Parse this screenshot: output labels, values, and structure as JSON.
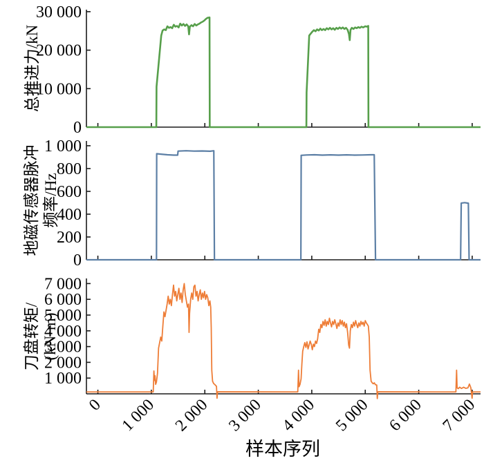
{
  "figure": {
    "background": "#ffffff",
    "axis_color": "#1a1a1a"
  },
  "chart_data": {
    "type": "line",
    "layout_hint": "three vertically stacked subplots sharing one x axis, no grid, no legend, inward ticks",
    "xlabel": "样本序列",
    "xlim": [
      -214,
      7156
    ],
    "x_ticks": [
      {
        "value": 0,
        "label": "0"
      },
      {
        "value": 1000,
        "label": "1 000"
      },
      {
        "value": 2000,
        "label": "2 000"
      },
      {
        "value": 3000,
        "label": "3 000"
      },
      {
        "value": 4000,
        "label": "4 000"
      },
      {
        "value": 5000,
        "label": "5 000"
      },
      {
        "value": 6000,
        "label": "6 000"
      },
      {
        "value": 7000,
        "label": "7 000"
      }
    ],
    "subplots": [
      {
        "id": "thrust",
        "ylabel_lines": [
          "总推进力/kN"
        ],
        "color": "#579F4B",
        "line_width": 2.6,
        "ylim": [
          0,
          30520
        ],
        "y_ticks": [
          {
            "value": 0,
            "label": "0"
          },
          {
            "value": 10000,
            "label": "10 000"
          },
          {
            "value": 20000,
            "label": "20 000"
          },
          {
            "value": 30000,
            "label": "30 000"
          }
        ],
        "points": [
          [
            -214,
            0
          ],
          [
            1093,
            0
          ],
          [
            1097,
            10500
          ],
          [
            1185,
            23800
          ],
          [
            1210,
            25100
          ],
          [
            1240,
            25400
          ],
          [
            1270,
            25200
          ],
          [
            1300,
            26200
          ],
          [
            1330,
            25800
          ],
          [
            1360,
            26000
          ],
          [
            1390,
            25700
          ],
          [
            1420,
            26600
          ],
          [
            1450,
            26100
          ],
          [
            1480,
            26300
          ],
          [
            1510,
            25900
          ],
          [
            1540,
            26900
          ],
          [
            1570,
            26400
          ],
          [
            1600,
            26800
          ],
          [
            1630,
            26300
          ],
          [
            1660,
            26700
          ],
          [
            1690,
            26200
          ],
          [
            1705,
            24100
          ],
          [
            1720,
            26100
          ],
          [
            1750,
            26500
          ],
          [
            1780,
            26200
          ],
          [
            1810,
            26800
          ],
          [
            1840,
            26400
          ],
          [
            1870,
            26700
          ],
          [
            1900,
            26900
          ],
          [
            1930,
            27200
          ],
          [
            1960,
            27400
          ],
          [
            1990,
            27700
          ],
          [
            2020,
            28100
          ],
          [
            2050,
            28400
          ],
          [
            2088,
            28500
          ],
          [
            2092,
            0
          ],
          [
            3899,
            0
          ],
          [
            3903,
            9000
          ],
          [
            3952,
            23800
          ],
          [
            3980,
            24300
          ],
          [
            4010,
            24800
          ],
          [
            4040,
            25200
          ],
          [
            4070,
            24900
          ],
          [
            4100,
            25400
          ],
          [
            4130,
            25100
          ],
          [
            4160,
            25600
          ],
          [
            4190,
            25200
          ],
          [
            4220,
            25500
          ],
          [
            4250,
            25200
          ],
          [
            4280,
            25700
          ],
          [
            4310,
            25400
          ],
          [
            4340,
            25800
          ],
          [
            4370,
            25400
          ],
          [
            4400,
            25700
          ],
          [
            4430,
            25300
          ],
          [
            4460,
            25800
          ],
          [
            4490,
            25500
          ],
          [
            4520,
            25900
          ],
          [
            4550,
            25600
          ],
          [
            4580,
            25900
          ],
          [
            4610,
            25500
          ],
          [
            4640,
            25800
          ],
          [
            4670,
            25300
          ],
          [
            4695,
            24200
          ],
          [
            4710,
            22600
          ],
          [
            4725,
            25300
          ],
          [
            4750,
            25800
          ],
          [
            4780,
            25500
          ],
          [
            4810,
            25900
          ],
          [
            4840,
            25700
          ],
          [
            4870,
            26000
          ],
          [
            4900,
            25800
          ],
          [
            4930,
            26100
          ],
          [
            4960,
            25900
          ],
          [
            5000,
            26200
          ],
          [
            5030,
            26100
          ],
          [
            5056,
            26300
          ],
          [
            5060,
            0
          ],
          [
            7156,
            0
          ]
        ]
      },
      {
        "id": "frequency",
        "ylabel_lines": [
          "地磁传感器脉冲",
          "频率/Hz"
        ],
        "color": "#5C7FA5",
        "line_width": 2.2,
        "ylim": [
          0,
          1042
        ],
        "y_ticks": [
          {
            "value": 0,
            "label": "0"
          },
          {
            "value": 200,
            "label": "200"
          },
          {
            "value": 400,
            "label": "400"
          },
          {
            "value": 600,
            "label": "600"
          },
          {
            "value": 800,
            "label": "800"
          },
          {
            "value": 1000,
            "label": "1 000"
          }
        ],
        "points": [
          [
            -214,
            0
          ],
          [
            1096,
            0
          ],
          [
            1100,
            930
          ],
          [
            1180,
            926
          ],
          [
            1300,
            921
          ],
          [
            1420,
            918
          ],
          [
            1492,
            918
          ],
          [
            1500,
            953
          ],
          [
            1650,
            956
          ],
          [
            1800,
            953
          ],
          [
            1950,
            954
          ],
          [
            2100,
            952
          ],
          [
            2168,
            956
          ],
          [
            2180,
            0
          ],
          [
            3796,
            0
          ],
          [
            3802,
            916
          ],
          [
            3900,
            919
          ],
          [
            4050,
            921
          ],
          [
            4200,
            918
          ],
          [
            4350,
            920
          ],
          [
            4500,
            918
          ],
          [
            4650,
            920
          ],
          [
            4800,
            918
          ],
          [
            4950,
            919
          ],
          [
            5100,
            921
          ],
          [
            5168,
            921
          ],
          [
            5192,
            0
          ],
          [
            6783,
            0
          ],
          [
            6795,
            497
          ],
          [
            6860,
            501
          ],
          [
            6928,
            496
          ],
          [
            6942,
            0
          ],
          [
            7156,
            0
          ]
        ]
      },
      {
        "id": "torque",
        "ylabel_lines": [
          "刀盘转矩/",
          "(kN·m)"
        ],
        "color": "#EE7D37",
        "line_width": 1.8,
        "ylim": [
          0,
          7325
        ],
        "y_ticks": [
          {
            "value": 1000,
            "label": "1 000"
          },
          {
            "value": 2000,
            "label": "2 000"
          },
          {
            "value": 3000,
            "label": "3 000"
          },
          {
            "value": 4000,
            "label": "4 000"
          },
          {
            "value": 5000,
            "label": "5 000"
          },
          {
            "value": 6000,
            "label": "6 000"
          },
          {
            "value": 7000,
            "label": "7 000"
          }
        ],
        "points": [
          [
            -214,
            120
          ],
          [
            1035,
            120
          ],
          [
            1048,
            1450
          ],
          [
            1058,
            850
          ],
          [
            1068,
            1150
          ],
          [
            1080,
            600
          ],
          [
            1095,
            750
          ],
          [
            1115,
            1300
          ],
          [
            1135,
            2900
          ],
          [
            1155,
            3250
          ],
          [
            1175,
            3600
          ],
          [
            1195,
            3350
          ],
          [
            1215,
            4300
          ],
          [
            1235,
            5200
          ],
          [
            1255,
            4900
          ],
          [
            1275,
            5300
          ],
          [
            1295,
            5700
          ],
          [
            1315,
            6200
          ],
          [
            1335,
            5700
          ],
          [
            1355,
            6000
          ],
          [
            1375,
            5600
          ],
          [
            1395,
            6300
          ],
          [
            1415,
            6900
          ],
          [
            1435,
            6200
          ],
          [
            1455,
            6500
          ],
          [
            1475,
            5900
          ],
          [
            1495,
            6300
          ],
          [
            1515,
            6700
          ],
          [
            1535,
            6000
          ],
          [
            1555,
            6400
          ],
          [
            1575,
            5800
          ],
          [
            1595,
            6600
          ],
          [
            1615,
            7000
          ],
          [
            1635,
            6300
          ],
          [
            1655,
            5900
          ],
          [
            1675,
            5500
          ],
          [
            1695,
            5700
          ],
          [
            1705,
            3900
          ],
          [
            1715,
            5100
          ],
          [
            1735,
            6000
          ],
          [
            1755,
            6400
          ],
          [
            1775,
            6000
          ],
          [
            1795,
            6800
          ],
          [
            1815,
            6900
          ],
          [
            1835,
            6200
          ],
          [
            1855,
            6500
          ],
          [
            1875,
            5900
          ],
          [
            1895,
            6300
          ],
          [
            1915,
            6600
          ],
          [
            1935,
            6000
          ],
          [
            1955,
            6400
          ],
          [
            1975,
            6100
          ],
          [
            1995,
            6500
          ],
          [
            2015,
            6000
          ],
          [
            2035,
            6300
          ],
          [
            2055,
            6100
          ],
          [
            2075,
            5600
          ],
          [
            2095,
            5900
          ],
          [
            2110,
            5500
          ],
          [
            2120,
            4200
          ],
          [
            2130,
            1500
          ],
          [
            2145,
            800
          ],
          [
            2165,
            650
          ],
          [
            2185,
            600
          ],
          [
            2205,
            520
          ],
          [
            2218,
            480
          ],
          [
            2228,
            -280
          ],
          [
            2238,
            130
          ],
          [
            3738,
            120
          ],
          [
            3752,
            1500
          ],
          [
            3762,
            450
          ],
          [
            3780,
            600
          ],
          [
            3800,
            950
          ],
          [
            3815,
            1900
          ],
          [
            3830,
            2700
          ],
          [
            3850,
            3000
          ],
          [
            3870,
            3250
          ],
          [
            3890,
            2950
          ],
          [
            3910,
            3300
          ],
          [
            3930,
            2850
          ],
          [
            3950,
            3100
          ],
          [
            3970,
            3350
          ],
          [
            3990,
            3150
          ],
          [
            4010,
            2800
          ],
          [
            4030,
            3150
          ],
          [
            4050,
            3000
          ],
          [
            4070,
            3350
          ],
          [
            4090,
            3200
          ],
          [
            4110,
            3500
          ],
          [
            4130,
            4100
          ],
          [
            4150,
            3900
          ],
          [
            4170,
            4400
          ],
          [
            4190,
            4200
          ],
          [
            4210,
            4600
          ],
          [
            4230,
            4350
          ],
          [
            4250,
            4700
          ],
          [
            4270,
            4300
          ],
          [
            4290,
            4600
          ],
          [
            4310,
            4400
          ],
          [
            4330,
            4800
          ],
          [
            4350,
            4500
          ],
          [
            4370,
            4250
          ],
          [
            4390,
            4600
          ],
          [
            4410,
            4400
          ],
          [
            4430,
            4700
          ],
          [
            4450,
            4450
          ],
          [
            4470,
            4150
          ],
          [
            4490,
            4500
          ],
          [
            4510,
            4300
          ],
          [
            4530,
            4700
          ],
          [
            4550,
            4400
          ],
          [
            4570,
            4650
          ],
          [
            4590,
            4300
          ],
          [
            4610,
            4550
          ],
          [
            4630,
            4200
          ],
          [
            4650,
            4450
          ],
          [
            4670,
            3900
          ],
          [
            4690,
            3100
          ],
          [
            4705,
            2900
          ],
          [
            4720,
            4000
          ],
          [
            4740,
            4400
          ],
          [
            4760,
            4200
          ],
          [
            4780,
            4550
          ],
          [
            4800,
            4300
          ],
          [
            4820,
            4650
          ],
          [
            4840,
            4400
          ],
          [
            4860,
            4200
          ],
          [
            4880,
            4500
          ],
          [
            4900,
            4300
          ],
          [
            4920,
            4600
          ],
          [
            4940,
            4400
          ],
          [
            4960,
            4550
          ],
          [
            4980,
            4300
          ],
          [
            5000,
            4650
          ],
          [
            5020,
            4500
          ],
          [
            5040,
            4400
          ],
          [
            5058,
            4300
          ],
          [
            5075,
            3600
          ],
          [
            5090,
            1500
          ],
          [
            5110,
            800
          ],
          [
            5130,
            700
          ],
          [
            5150,
            640
          ],
          [
            5170,
            700
          ],
          [
            5190,
            580
          ],
          [
            5215,
            560
          ],
          [
            5225,
            -300
          ],
          [
            5235,
            130
          ],
          [
            6695,
            120
          ],
          [
            6708,
            1500
          ],
          [
            6718,
            380
          ],
          [
            6740,
            330
          ],
          [
            6765,
            420
          ],
          [
            6800,
            340
          ],
          [
            6840,
            420
          ],
          [
            6880,
            350
          ],
          [
            6920,
            380
          ],
          [
            6948,
            620
          ],
          [
            6975,
            380
          ],
          [
            6998,
            -280
          ],
          [
            7008,
            120
          ],
          [
            7156,
            120
          ]
        ]
      }
    ]
  }
}
